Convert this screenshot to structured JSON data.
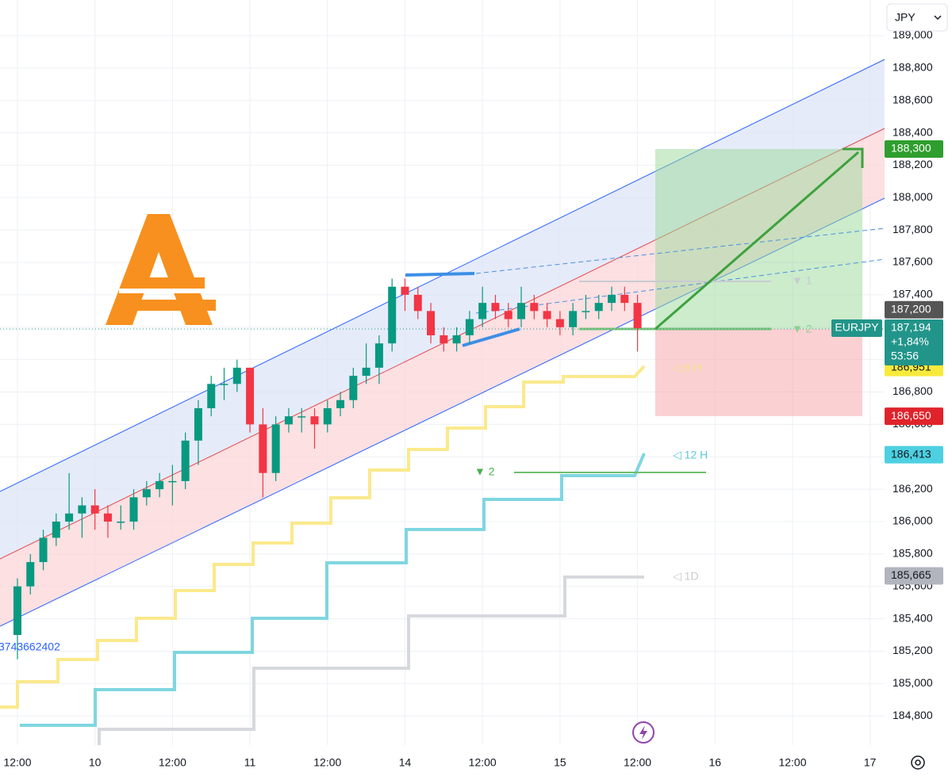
{
  "chart_data": {
    "type": "candlestick",
    "symbol": "EURJPY",
    "currency": "JPY",
    "x": [
      0,
      2,
      4,
      6,
      8,
      10,
      12,
      14,
      16,
      18,
      20,
      22,
      24,
      26,
      28,
      30,
      32,
      34,
      36,
      38,
      40,
      42,
      44,
      46,
      48,
      50,
      52,
      54,
      56,
      58,
      60,
      62,
      64,
      66,
      68,
      70,
      72,
      74,
      76,
      78,
      80,
      82,
      84,
      86,
      88,
      90,
      92,
      94,
      96
    ],
    "open": [
      185300,
      185600,
      185750,
      185900,
      186000,
      186050,
      186100,
      186050,
      186000,
      186000,
      186150,
      186200,
      186250,
      186250,
      186500,
      186700,
      186850,
      186850,
      186950,
      186600,
      186300,
      186600,
      186650,
      186650,
      186600,
      186700,
      186750,
      186900,
      186950,
      187100,
      187450,
      187400,
      187300,
      187150,
      187100,
      187150,
      187250,
      187350,
      187300,
      187250,
      187350,
      187300,
      187250,
      187200,
      187300,
      187300,
      187350,
      187400,
      187350
    ],
    "high": [
      185650,
      185800,
      185950,
      186050,
      186300,
      186150,
      186200,
      186100,
      186100,
      186200,
      186250,
      186300,
      186350,
      186550,
      186750,
      186900,
      186950,
      187000,
      186950,
      186700,
      186650,
      186700,
      186700,
      186700,
      186750,
      186800,
      186950,
      187100,
      187150,
      187500,
      187500,
      187450,
      187350,
      187200,
      187200,
      187300,
      187450,
      187400,
      187350,
      187450,
      187400,
      187350,
      187300,
      187350,
      187400,
      187400,
      187450,
      187450,
      187400
    ],
    "low": [
      185150,
      185550,
      185700,
      185850,
      185950,
      185900,
      185950,
      185900,
      185950,
      185950,
      186100,
      186150,
      186100,
      186200,
      186350,
      186650,
      186750,
      186800,
      186550,
      186150,
      186250,
      186550,
      186550,
      186450,
      186550,
      186650,
      186700,
      186850,
      186850,
      187050,
      187300,
      187250,
      187100,
      187050,
      187050,
      187100,
      187200,
      187250,
      187200,
      187200,
      187250,
      187200,
      187150,
      187150,
      187250,
      187250,
      187300,
      187300,
      187050
    ],
    "close": [
      185600,
      185750,
      185900,
      186000,
      186050,
      186100,
      186050,
      186000,
      186000,
      186150,
      186200,
      186250,
      186250,
      186500,
      186700,
      186850,
      186850,
      186950,
      186600,
      186300,
      186600,
      186650,
      186650,
      186600,
      186700,
      186750,
      186900,
      186950,
      187100,
      187450,
      187400,
      187300,
      187150,
      187100,
      187150,
      187250,
      187350,
      187300,
      187250,
      187350,
      187300,
      187250,
      187200,
      187300,
      187300,
      187350,
      187400,
      187350,
      187194
    ],
    "up_color": "#089981",
    "down_color": "#f23645",
    "xlim": [
      -2.7,
      134.25
    ],
    "xticks": [
      {
        "value": 0,
        "label": "12:00"
      },
      {
        "value": 12,
        "label": "10"
      },
      {
        "value": 24,
        "label": "12:00"
      },
      {
        "value": 36,
        "label": "11"
      },
      {
        "value": 48,
        "label": "12:00"
      },
      {
        "value": 60,
        "label": "14"
      },
      {
        "value": 72,
        "label": "12:00"
      },
      {
        "value": 84,
        "label": "15"
      },
      {
        "value": 96,
        "label": "12:00"
      },
      {
        "value": 108,
        "label": "16"
      },
      {
        "value": 120,
        "label": "12:00"
      },
      {
        "value": 132,
        "label": "17"
      }
    ],
    "ylim": [
      184620,
      189220
    ],
    "yticks": [
      {
        "value": 184800,
        "label": "184,800"
      },
      {
        "value": 185000,
        "label": "185,000"
      },
      {
        "value": 185200,
        "label": "185,200"
      },
      {
        "value": 185400,
        "label": "185,400"
      },
      {
        "value": 185600,
        "label": "185,600"
      },
      {
        "value": 185800,
        "label": "185,800"
      },
      {
        "value": 186000,
        "label": "186,000"
      },
      {
        "value": 186200,
        "label": "186,200"
      },
      {
        "value": 186400,
        "label": "186,400"
      },
      {
        "value": 186600,
        "label": "186,600"
      },
      {
        "value": 186800,
        "label": "186,800"
      },
      {
        "value": 187000,
        "label": "187,000"
      },
      {
        "value": 187200,
        "label": "187,200"
      },
      {
        "value": 187400,
        "label": "187,400"
      },
      {
        "value": 187600,
        "label": "187,600"
      },
      {
        "value": 187800,
        "label": "187,800"
      },
      {
        "value": 188000,
        "label": "188,000"
      },
      {
        "value": 188200,
        "label": "188,200"
      },
      {
        "value": 188400,
        "label": "188,400"
      },
      {
        "value": 188600,
        "label": "188,600"
      },
      {
        "value": 188800,
        "label": "188,800"
      },
      {
        "value": 189000,
        "label": "189,000"
      }
    ],
    "grid": true,
    "last_price": {
      "value": 187194,
      "label": "187,194",
      "change": "+1,84%",
      "countdown": "53:56",
      "color": "#22958a"
    },
    "price_labels": [
      {
        "value": 188300,
        "label": "188,300",
        "color": "#2e9e2e",
        "text_color": "#ffffff"
      },
      {
        "value": 187200,
        "label": "187,200",
        "color": "#555555",
        "text_color": "#ffffff"
      },
      {
        "value": 186951,
        "label": "186,951",
        "color": "#f7ea3b",
        "text_color": "#131722"
      },
      {
        "value": 186650,
        "label": "186,650",
        "color": "#e0232b",
        "text_color": "#ffffff"
      },
      {
        "value": 186413,
        "label": "186,413",
        "color": "#4dd0e1",
        "text_color": "#131722"
      },
      {
        "value": 185665,
        "label": "185,665",
        "color": "#b2b5be",
        "text_color": "#131722"
      }
    ],
    "annotations": [
      "◁ 6 H",
      "◁ 12 H",
      "◁ 1D",
      "▼ 1",
      "▼ 2",
      "▼ 2",
      "3743662402"
    ]
  }
}
